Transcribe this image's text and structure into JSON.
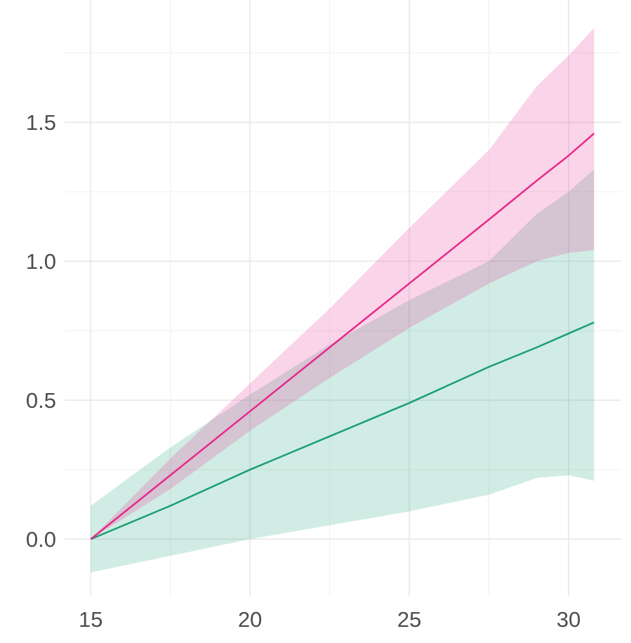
{
  "chart_data": {
    "type": "line",
    "x": [
      15,
      17.5,
      20,
      22.5,
      25,
      27.5,
      29,
      30,
      30.8
    ],
    "series": [
      {
        "color": "#1b9e77",
        "values": [
          0,
          0.12,
          0.25,
          0.37,
          0.49,
          0.62,
          0.69,
          0.74,
          0.78
        ],
        "lower": [
          -0.12,
          -0.06,
          0.0,
          0.05,
          0.1,
          0.16,
          0.22,
          0.23,
          0.21
        ],
        "upper": [
          0.12,
          0.33,
          0.52,
          0.7,
          0.86,
          1.0,
          1.17,
          1.25,
          1.33
        ]
      },
      {
        "color": "#e7298a",
        "values": [
          0,
          0.23,
          0.46,
          0.69,
          0.92,
          1.15,
          1.29,
          1.38,
          1.46
        ],
        "lower": [
          0,
          0.18,
          0.39,
          0.58,
          0.76,
          0.92,
          1.0,
          1.03,
          1.04
        ],
        "upper": [
          0,
          0.29,
          0.56,
          0.83,
          1.12,
          1.4,
          1.63,
          1.74,
          1.84
        ]
      }
    ],
    "xlim": [
      14.18,
      31.65
    ],
    "ylim": [
      -0.207,
      1.94
    ],
    "xticks": [
      15,
      20,
      25,
      30
    ],
    "yticks": [
      {
        "value": 0,
        "label": "0.0"
      },
      {
        "value": 0.5,
        "label": "0.5"
      },
      {
        "value": 1,
        "label": "1.0"
      },
      {
        "value": 1.5,
        "label": "1.5"
      }
    ],
    "grid": true
  }
}
